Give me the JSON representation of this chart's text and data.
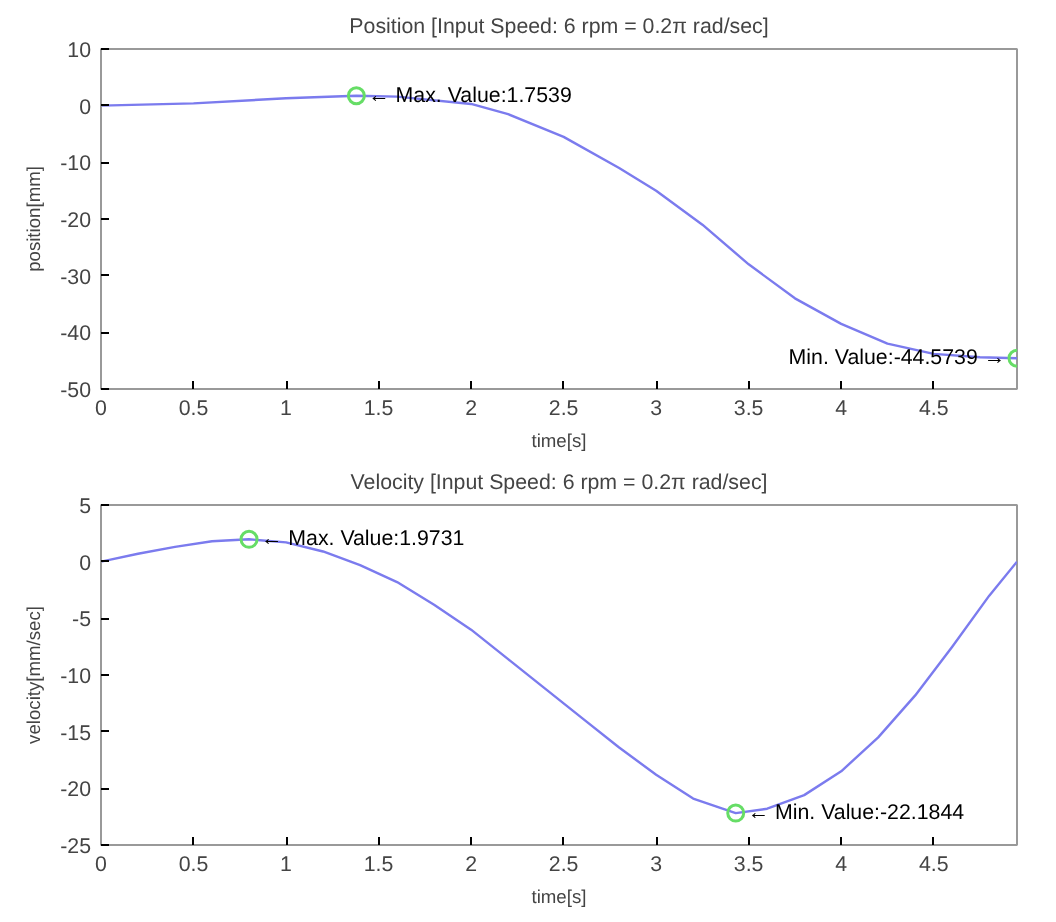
{
  "chart_data": [
    {
      "type": "line",
      "title": "Position [Input Speed: 6 rpm = 0.2π rad/sec]",
      "xlabel": "time[s]",
      "ylabel": "position[mm]",
      "xlim": [
        0,
        4.95
      ],
      "ylim": [
        -50,
        10
      ],
      "xticks": [
        0,
        0.5,
        1,
        1.5,
        2,
        2.5,
        3,
        3.5,
        4,
        4.5
      ],
      "yticks": [
        10,
        0,
        -10,
        -20,
        -30,
        -40,
        -50
      ],
      "grid": false,
      "series": [
        {
          "color": "#7b7bee",
          "x": [
            0,
            0.5,
            1,
            1.38,
            1.6,
            2,
            2.2,
            2.5,
            2.8,
            3.0,
            3.25,
            3.5,
            3.75,
            4.0,
            4.25,
            4.5,
            4.75,
            4.95
          ],
          "values": [
            0,
            0.4,
            1.3,
            1.7539,
            1.6,
            0.3,
            -1.5,
            -5.5,
            -11,
            -15,
            -21,
            -28,
            -34,
            -38.5,
            -42,
            -43.8,
            -44.4,
            -44.5739
          ]
        },
        {
          "type": "scatter",
          "marker": "circle",
          "color": "#66dd66",
          "x": [
            1.38,
            4.95
          ],
          "values": [
            1.7539,
            -44.5739
          ]
        }
      ],
      "annotations": [
        {
          "text": "← Max. Value:1.7539",
          "x": 1.38,
          "y": 1.7539
        },
        {
          "text": "Min. Value:-44.5739 →",
          "x": 4.95,
          "y": -44.5739
        }
      ]
    },
    {
      "type": "line",
      "title": "Velocity [Input Speed: 6 rpm = 0.2π rad/sec]",
      "xlabel": "time[s]",
      "ylabel": "velocity[mm/sec]",
      "xlim": [
        0,
        4.95
      ],
      "ylim": [
        -25,
        5
      ],
      "xticks": [
        0,
        0.5,
        1,
        1.5,
        2,
        2.5,
        3,
        3.5,
        4,
        4.5
      ],
      "yticks": [
        5,
        0,
        -5,
        -10,
        -15,
        -20,
        -25
      ],
      "grid": false,
      "series": [
        {
          "color": "#7b7bee",
          "x": [
            0,
            0.2,
            0.4,
            0.6,
            0.8,
            1.0,
            1.2,
            1.4,
            1.6,
            1.8,
            2.0,
            2.2,
            2.4,
            2.6,
            2.8,
            3.0,
            3.2,
            3.43,
            3.6,
            3.8,
            4.0,
            4.2,
            4.4,
            4.6,
            4.8,
            4.95
          ],
          "values": [
            0,
            0.7,
            1.3,
            1.8,
            1.9731,
            1.7,
            0.9,
            -0.3,
            -1.8,
            -3.8,
            -6,
            -8.6,
            -11.2,
            -13.8,
            -16.4,
            -18.8,
            -20.9,
            -22.1844,
            -21.8,
            -20.6,
            -18.5,
            -15.5,
            -11.8,
            -7.5,
            -3,
            0
          ]
        },
        {
          "type": "scatter",
          "marker": "circle",
          "color": "#66dd66",
          "x": [
            0.8,
            3.43
          ],
          "values": [
            1.9731,
            -22.1844
          ]
        }
      ],
      "annotations": [
        {
          "text": "← Max. Value:1.9731",
          "x": 0.8,
          "y": 1.9731
        },
        {
          "text": "← Min. Value:-22.1844",
          "x": 3.43,
          "y": -22.1844
        }
      ]
    }
  ]
}
